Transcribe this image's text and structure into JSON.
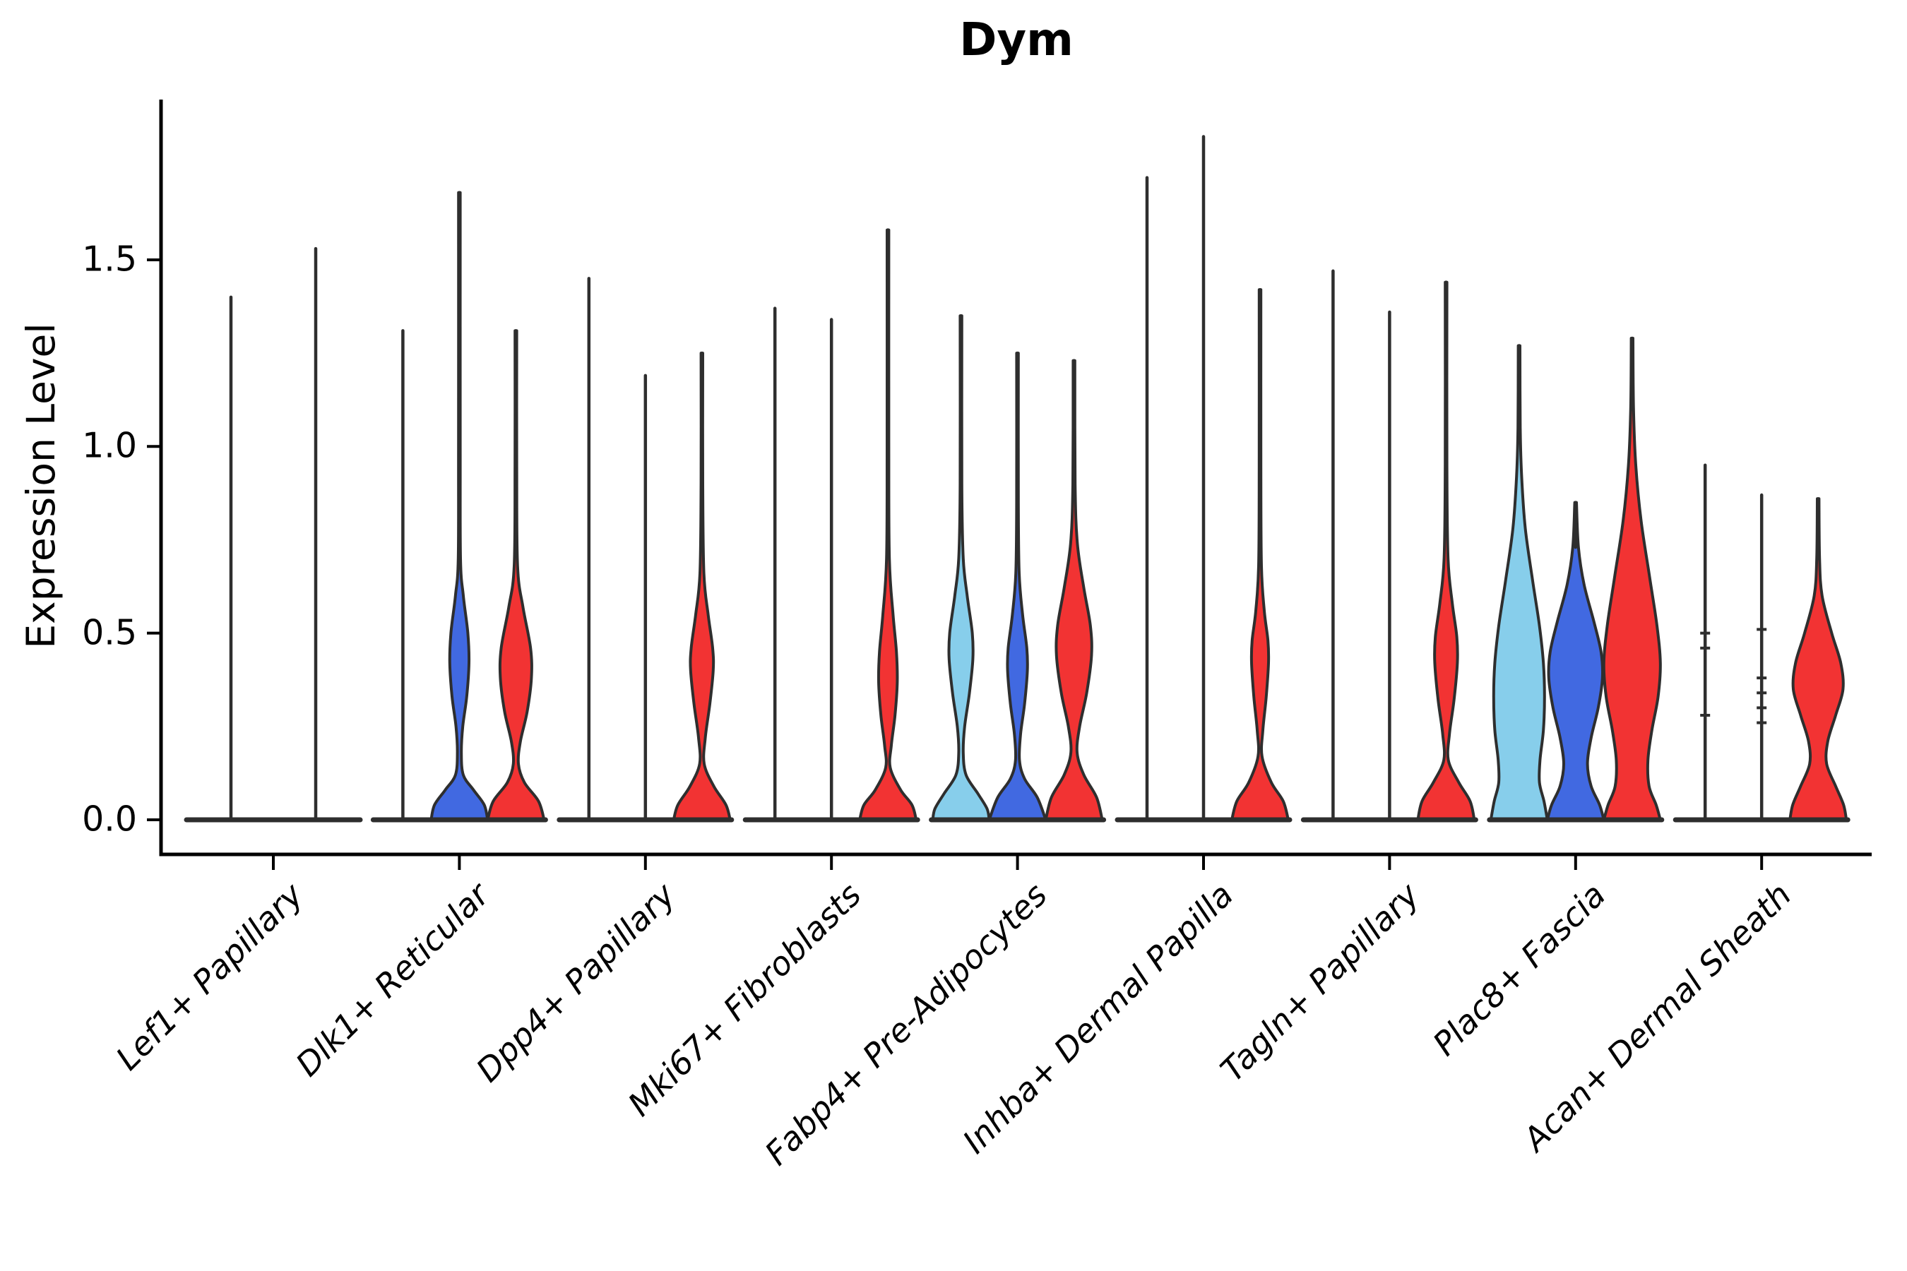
{
  "figure": {
    "background": "#FFFFFF"
  },
  "chart_data": {
    "type": "violin",
    "title": "Dym",
    "ylabel": "Expression Level",
    "xlabel": "",
    "grid": false,
    "legend": "none",
    "yticks": {
      "labels": [
        "0.0",
        "0.5",
        "1.0",
        "1.5"
      ],
      "values": [
        0.0,
        0.5,
        1.0,
        1.5
      ]
    },
    "ylim": [
      -0.09,
      1.93
    ],
    "palette": {
      "lightblue": "#87CEEB",
      "blue": "#4169E1",
      "red": "#F23333",
      "outline": "#2E2E2E",
      "spine": "#000000",
      "text": "#000000"
    },
    "groups": [
      {
        "label": "Lef1+ Papillary",
        "violins": [
          {
            "color": "lightblue",
            "shape": "thin",
            "max": 1.4
          },
          {
            "color": "blue",
            "shape": "thin",
            "max": 1.53
          }
        ]
      },
      {
        "label": "Dlk1+ Reticular",
        "violins": [
          {
            "color": "lightblue",
            "shape": "thin",
            "max": 1.31
          },
          {
            "color": "blue",
            "shape": "filled",
            "max": 1.68,
            "profile": [
              [
                1.68,
                0.015
              ],
              [
                1.0,
                0.025
              ],
              [
                0.7,
                0.04
              ],
              [
                0.6,
                0.14
              ],
              [
                0.5,
                0.3
              ],
              [
                0.42,
                0.34
              ],
              [
                0.33,
                0.26
              ],
              [
                0.25,
                0.12
              ],
              [
                0.18,
                0.07
              ],
              [
                0.12,
                0.14
              ],
              [
                0.08,
                0.5
              ],
              [
                0.04,
                0.88
              ],
              [
                0.0,
                1.0
              ]
            ]
          },
          {
            "color": "red",
            "shape": "filled",
            "max": 1.31,
            "profile": [
              [
                1.31,
                0.015
              ],
              [
                0.95,
                0.03
              ],
              [
                0.68,
                0.06
              ],
              [
                0.57,
                0.25
              ],
              [
                0.46,
                0.52
              ],
              [
                0.38,
                0.55
              ],
              [
                0.29,
                0.4
              ],
              [
                0.21,
                0.16
              ],
              [
                0.15,
                0.09
              ],
              [
                0.1,
                0.3
              ],
              [
                0.05,
                0.8
              ],
              [
                0.0,
                1.0
              ]
            ]
          }
        ]
      },
      {
        "label": "Dpp4+ Papillary",
        "violins": [
          {
            "color": "lightblue",
            "shape": "thin",
            "max": 1.45
          },
          {
            "color": "blue",
            "shape": "thin",
            "max": 1.19
          },
          {
            "color": "red",
            "shape": "filled",
            "max": 1.25,
            "profile": [
              [
                1.25,
                0.015
              ],
              [
                0.9,
                0.03
              ],
              [
                0.66,
                0.07
              ],
              [
                0.55,
                0.22
              ],
              [
                0.46,
                0.38
              ],
              [
                0.4,
                0.4
              ],
              [
                0.31,
                0.28
              ],
              [
                0.22,
                0.12
              ],
              [
                0.15,
                0.08
              ],
              [
                0.09,
                0.42
              ],
              [
                0.04,
                0.85
              ],
              [
                0.0,
                1.0
              ]
            ]
          }
        ]
      },
      {
        "label": "Mki67+ Fibroblasts",
        "violins": [
          {
            "color": "lightblue",
            "shape": "thin",
            "max": 1.37
          },
          {
            "color": "blue",
            "shape": "thin",
            "max": 1.34
          },
          {
            "color": "red",
            "shape": "filled",
            "max": 1.58,
            "profile": [
              [
                1.58,
                0.015
              ],
              [
                1.0,
                0.025
              ],
              [
                0.7,
                0.05
              ],
              [
                0.55,
                0.18
              ],
              [
                0.45,
                0.3
              ],
              [
                0.37,
                0.33
              ],
              [
                0.28,
                0.25
              ],
              [
                0.2,
                0.12
              ],
              [
                0.14,
                0.08
              ],
              [
                0.08,
                0.45
              ],
              [
                0.04,
                0.85
              ],
              [
                0.0,
                1.0
              ]
            ]
          }
        ]
      },
      {
        "label": "Fabp4+ Pre-Adipocytes",
        "violins": [
          {
            "color": "lightblue",
            "shape": "filled",
            "max": 1.35,
            "profile": [
              [
                1.35,
                0.015
              ],
              [
                0.9,
                0.03
              ],
              [
                0.7,
                0.08
              ],
              [
                0.6,
                0.22
              ],
              [
                0.5,
                0.4
              ],
              [
                0.43,
                0.42
              ],
              [
                0.34,
                0.3
              ],
              [
                0.25,
                0.13
              ],
              [
                0.18,
                0.08
              ],
              [
                0.12,
                0.18
              ],
              [
                0.07,
                0.6
              ],
              [
                0.03,
                0.92
              ],
              [
                0.0,
                1.0
              ]
            ]
          },
          {
            "color": "blue",
            "shape": "filled",
            "max": 1.25,
            "profile": [
              [
                1.25,
                0.015
              ],
              [
                0.85,
                0.03
              ],
              [
                0.66,
                0.06
              ],
              [
                0.55,
                0.18
              ],
              [
                0.46,
                0.33
              ],
              [
                0.4,
                0.35
              ],
              [
                0.31,
                0.25
              ],
              [
                0.23,
                0.11
              ],
              [
                0.16,
                0.07
              ],
              [
                0.11,
                0.25
              ],
              [
                0.06,
                0.7
              ],
              [
                0.0,
                1.0
              ]
            ]
          },
          {
            "color": "red",
            "shape": "filled",
            "max": 1.23,
            "profile": [
              [
                1.23,
                0.02
              ],
              [
                0.9,
                0.04
              ],
              [
                0.74,
                0.12
              ],
              [
                0.62,
                0.35
              ],
              [
                0.52,
                0.58
              ],
              [
                0.44,
                0.62
              ],
              [
                0.34,
                0.45
              ],
              [
                0.25,
                0.2
              ],
              [
                0.18,
                0.11
              ],
              [
                0.12,
                0.35
              ],
              [
                0.06,
                0.8
              ],
              [
                0.0,
                1.0
              ]
            ]
          }
        ]
      },
      {
        "label": "Inhba+ Dermal Papilla",
        "violins": [
          {
            "color": "lightblue",
            "shape": "thin",
            "max": 1.72
          },
          {
            "color": "blue",
            "shape": "thin",
            "max": 1.83
          },
          {
            "color": "red",
            "shape": "filled",
            "max": 1.42,
            "profile": [
              [
                1.42,
                0.015
              ],
              [
                0.95,
                0.025
              ],
              [
                0.68,
                0.05
              ],
              [
                0.56,
                0.15
              ],
              [
                0.48,
                0.28
              ],
              [
                0.42,
                0.3
              ],
              [
                0.33,
                0.22
              ],
              [
                0.24,
                0.1
              ],
              [
                0.17,
                0.07
              ],
              [
                0.1,
                0.4
              ],
              [
                0.05,
                0.82
              ],
              [
                0.0,
                1.0
              ]
            ]
          }
        ]
      },
      {
        "label": "Tagln+ Papillary",
        "violins": [
          {
            "color": "lightblue",
            "shape": "thin",
            "max": 1.47
          },
          {
            "color": "blue",
            "shape": "thin",
            "max": 1.36
          },
          {
            "color": "red",
            "shape": "filled",
            "max": 1.44,
            "profile": [
              [
                1.44,
                0.015
              ],
              [
                0.95,
                0.03
              ],
              [
                0.7,
                0.07
              ],
              [
                0.58,
                0.22
              ],
              [
                0.49,
                0.38
              ],
              [
                0.42,
                0.4
              ],
              [
                0.32,
                0.28
              ],
              [
                0.23,
                0.12
              ],
              [
                0.16,
                0.08
              ],
              [
                0.1,
                0.45
              ],
              [
                0.05,
                0.85
              ],
              [
                0.0,
                1.0
              ]
            ]
          }
        ]
      },
      {
        "label": "Plac8+ Fascia",
        "violins": [
          {
            "color": "lightblue",
            "shape": "filled",
            "max": 1.27,
            "profile": [
              [
                1.27,
                0.02
              ],
              [
                1.05,
                0.04
              ],
              [
                0.92,
                0.09
              ],
              [
                0.78,
                0.22
              ],
              [
                0.64,
                0.48
              ],
              [
                0.52,
                0.72
              ],
              [
                0.42,
                0.86
              ],
              [
                0.33,
                0.9
              ],
              [
                0.24,
                0.86
              ],
              [
                0.16,
                0.74
              ],
              [
                0.1,
                0.72
              ],
              [
                0.05,
                0.88
              ],
              [
                0.0,
                1.0
              ]
            ]
          },
          {
            "color": "blue",
            "shape": "filled",
            "max": 0.85,
            "profile": [
              [
                0.85,
                0.03
              ],
              [
                0.73,
                0.1
              ],
              [
                0.63,
                0.3
              ],
              [
                0.53,
                0.65
              ],
              [
                0.45,
                0.9
              ],
              [
                0.38,
                0.95
              ],
              [
                0.3,
                0.8
              ],
              [
                0.22,
                0.55
              ],
              [
                0.15,
                0.42
              ],
              [
                0.09,
                0.55
              ],
              [
                0.04,
                0.85
              ],
              [
                0.0,
                1.0
              ]
            ]
          },
          {
            "color": "red",
            "shape": "filled",
            "max": 1.29,
            "profile": [
              [
                1.29,
                0.02
              ],
              [
                1.1,
                0.05
              ],
              [
                0.95,
                0.13
              ],
              [
                0.8,
                0.32
              ],
              [
                0.65,
                0.62
              ],
              [
                0.52,
                0.88
              ],
              [
                0.42,
                1.0
              ],
              [
                0.33,
                0.92
              ],
              [
                0.24,
                0.7
              ],
              [
                0.16,
                0.56
              ],
              [
                0.09,
                0.6
              ],
              [
                0.04,
                0.85
              ],
              [
                0.0,
                1.0
              ]
            ]
          }
        ]
      },
      {
        "label": "Acan+ Dermal Sheath",
        "violins": [
          {
            "color": "lightblue",
            "shape": "thin",
            "max": 0.95,
            "marks": [
              0.5,
              0.46,
              0.28
            ]
          },
          {
            "color": "blue",
            "shape": "thin",
            "max": 0.87,
            "marks": [
              0.51,
              0.38,
              0.34,
              0.3,
              0.26
            ]
          },
          {
            "color": "red",
            "shape": "filled",
            "max": 0.86,
            "profile": [
              [
                0.86,
                0.02
              ],
              [
                0.7,
                0.05
              ],
              [
                0.6,
                0.14
              ],
              [
                0.5,
                0.48
              ],
              [
                0.42,
                0.8
              ],
              [
                0.35,
                0.88
              ],
              [
                0.28,
                0.62
              ],
              [
                0.21,
                0.34
              ],
              [
                0.15,
                0.3
              ],
              [
                0.09,
                0.62
              ],
              [
                0.04,
                0.9
              ],
              [
                0.0,
                1.0
              ]
            ]
          }
        ]
      }
    ]
  }
}
